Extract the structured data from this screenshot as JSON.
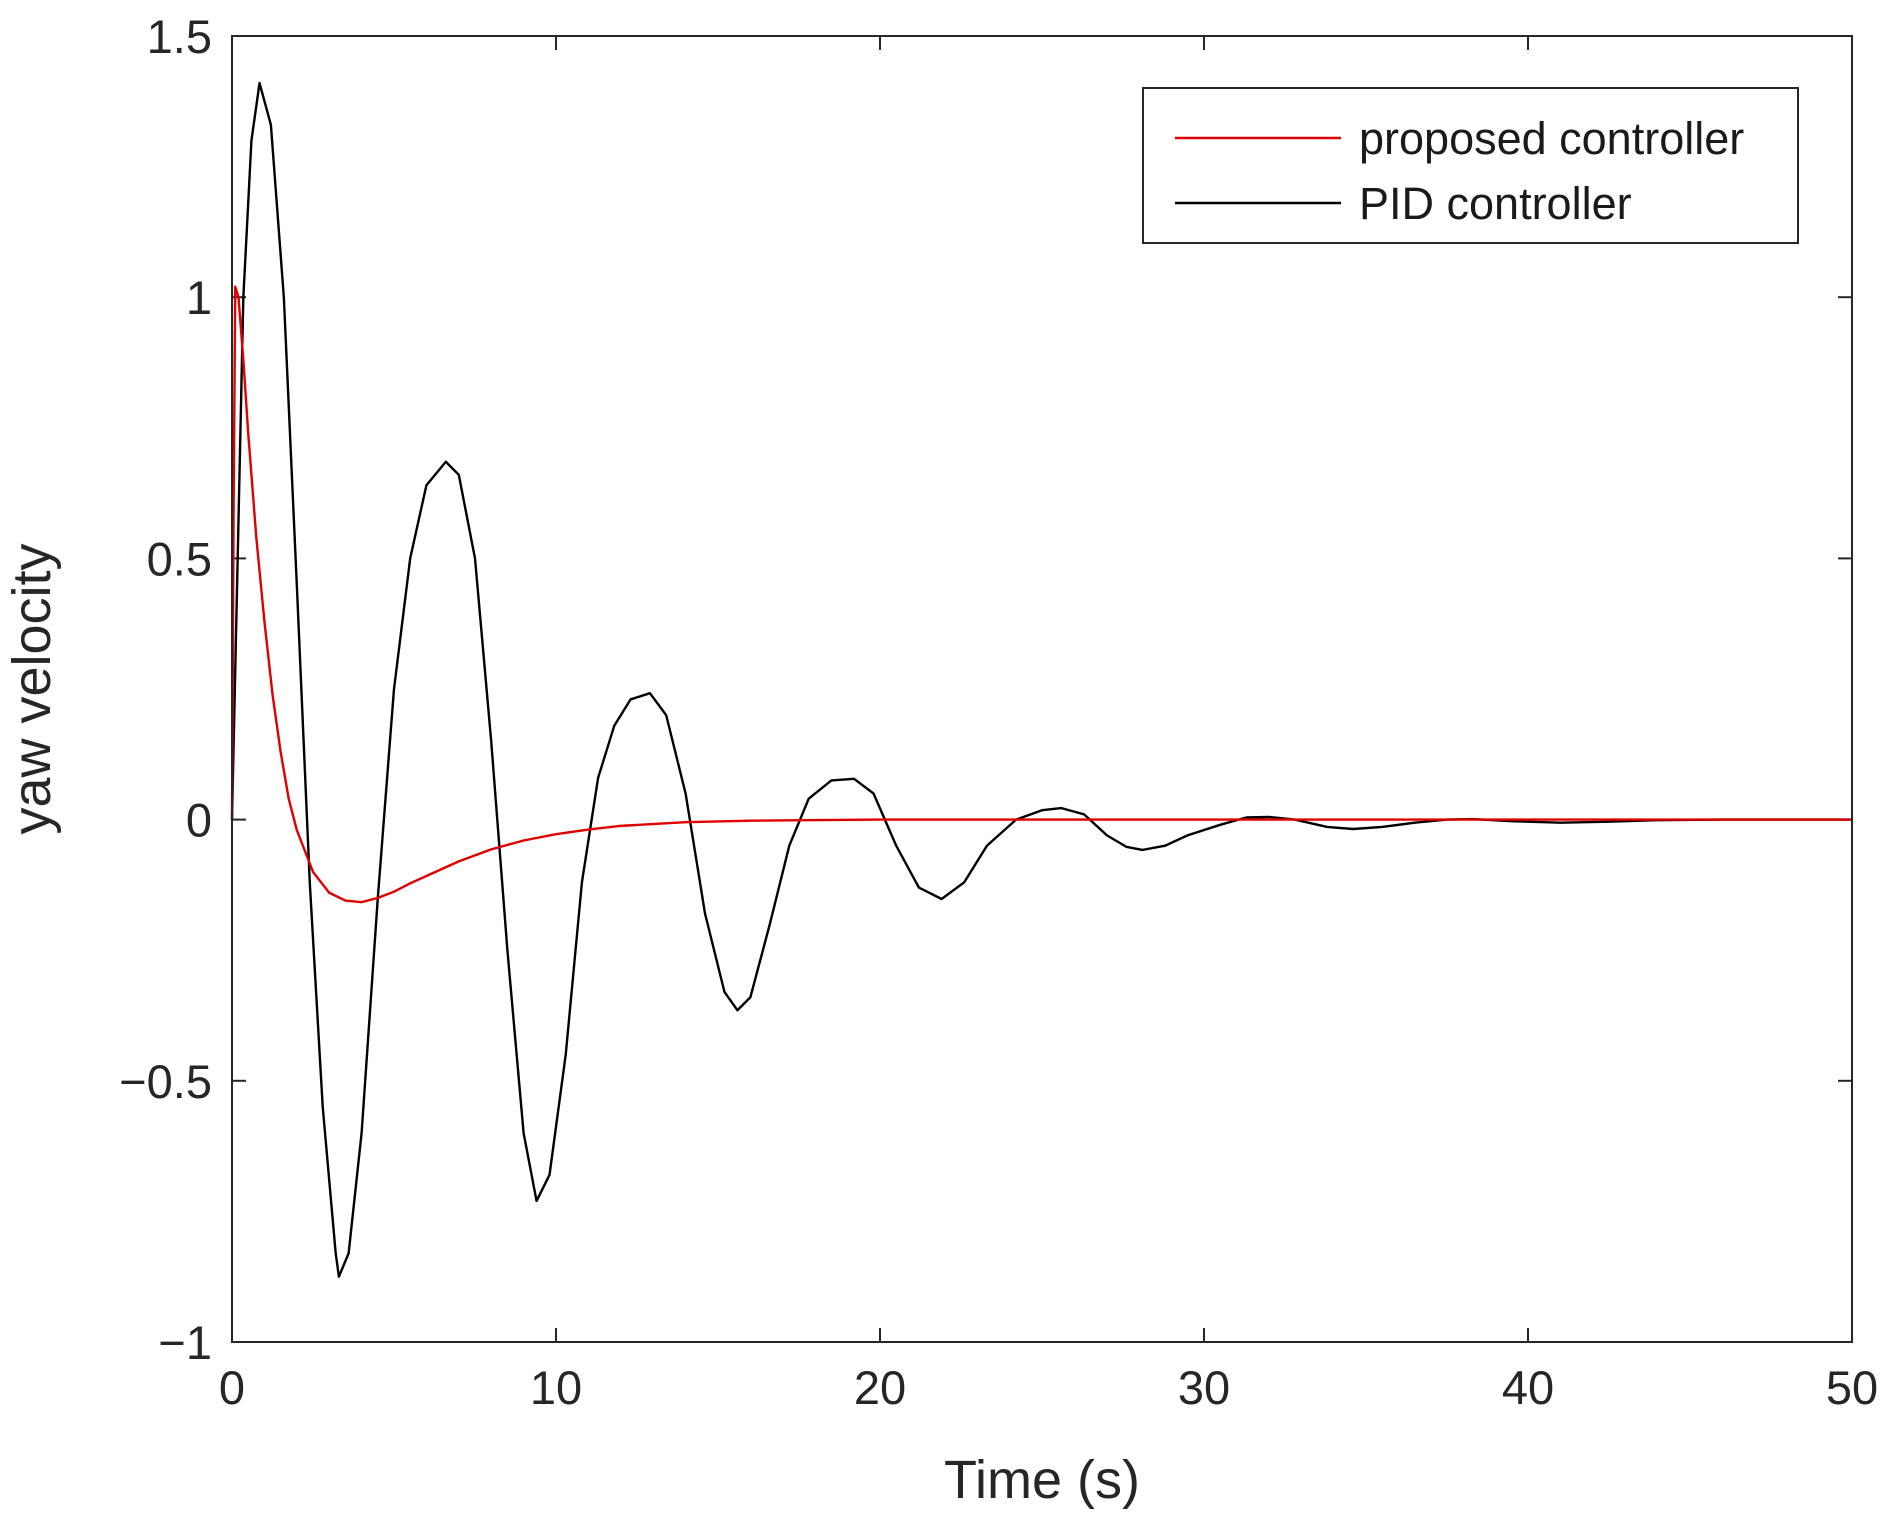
{
  "chart_data": {
    "type": "line",
    "title": "",
    "xlabel": "Time (s)",
    "ylabel": "yaw velocity",
    "xlim": [
      0,
      50
    ],
    "ylim": [
      -1,
      1.5
    ],
    "xticks": [
      0,
      10,
      20,
      30,
      40,
      50
    ],
    "xtick_labels": [
      "0",
      "10",
      "20",
      "30",
      "40",
      "50"
    ],
    "yticks": [
      -1,
      -0.5,
      0,
      0.5,
      1,
      1.5
    ],
    "ytick_labels": [
      "−1",
      "−0.5",
      "0",
      "0.5",
      "1",
      "1.5"
    ],
    "grid": false,
    "legend_position": "top-right",
    "series": [
      {
        "name": "proposed controller",
        "color": "#e00000",
        "points": [
          [
            0,
            0
          ],
          [
            0.05,
            0.6
          ],
          [
            0.1,
            1.02
          ],
          [
            0.2,
            1.0
          ],
          [
            0.35,
            0.88
          ],
          [
            0.5,
            0.74
          ],
          [
            0.75,
            0.54
          ],
          [
            1.0,
            0.38
          ],
          [
            1.25,
            0.24
          ],
          [
            1.5,
            0.13
          ],
          [
            1.75,
            0.04
          ],
          [
            2.0,
            -0.02
          ],
          [
            2.25,
            -0.06
          ],
          [
            2.5,
            -0.1
          ],
          [
            3.0,
            -0.14
          ],
          [
            3.5,
            -0.155
          ],
          [
            4.0,
            -0.158
          ],
          [
            4.5,
            -0.15
          ],
          [
            5.0,
            -0.138
          ],
          [
            5.5,
            -0.122
          ],
          [
            6.0,
            -0.108
          ],
          [
            7.0,
            -0.08
          ],
          [
            8.0,
            -0.057
          ],
          [
            9.0,
            -0.04
          ],
          [
            10.0,
            -0.028
          ],
          [
            11.0,
            -0.019
          ],
          [
            12.0,
            -0.012
          ],
          [
            14.0,
            -0.005
          ],
          [
            16.0,
            -0.002
          ],
          [
            20.0,
            0.0
          ],
          [
            30.0,
            0.0
          ],
          [
            40.0,
            0.0
          ],
          [
            50.0,
            0.0
          ]
        ]
      },
      {
        "name": "PID controller",
        "color": "#000000",
        "points": [
          [
            0,
            0
          ],
          [
            0.35,
            1.0
          ],
          [
            0.6,
            1.3
          ],
          [
            0.85,
            1.41
          ],
          [
            1.2,
            1.33
          ],
          [
            1.6,
            1.0
          ],
          [
            2.0,
            0.45
          ],
          [
            2.4,
            -0.12
          ],
          [
            2.8,
            -0.55
          ],
          [
            3.2,
            -0.83
          ],
          [
            3.3,
            -0.875
          ],
          [
            3.6,
            -0.83
          ],
          [
            4.0,
            -0.6
          ],
          [
            4.5,
            -0.15
          ],
          [
            5.0,
            0.25
          ],
          [
            5.5,
            0.5
          ],
          [
            6.0,
            0.64
          ],
          [
            6.6,
            0.685
          ],
          [
            7.0,
            0.66
          ],
          [
            7.5,
            0.5
          ],
          [
            8.0,
            0.15
          ],
          [
            8.5,
            -0.25
          ],
          [
            9.0,
            -0.6
          ],
          [
            9.4,
            -0.73
          ],
          [
            9.8,
            -0.68
          ],
          [
            10.3,
            -0.45
          ],
          [
            10.8,
            -0.12
          ],
          [
            11.3,
            0.08
          ],
          [
            11.8,
            0.18
          ],
          [
            12.3,
            0.23
          ],
          [
            12.9,
            0.242
          ],
          [
            13.4,
            0.2
          ],
          [
            14.0,
            0.05
          ],
          [
            14.6,
            -0.18
          ],
          [
            15.2,
            -0.33
          ],
          [
            15.6,
            -0.365
          ],
          [
            16.0,
            -0.34
          ],
          [
            16.6,
            -0.2
          ],
          [
            17.2,
            -0.05
          ],
          [
            17.8,
            0.04
          ],
          [
            18.5,
            0.075
          ],
          [
            19.2,
            0.078
          ],
          [
            19.8,
            0.05
          ],
          [
            20.5,
            -0.05
          ],
          [
            21.2,
            -0.13
          ],
          [
            21.9,
            -0.152
          ],
          [
            22.6,
            -0.12
          ],
          [
            23.3,
            -0.05
          ],
          [
            24.2,
            0.0
          ],
          [
            25.0,
            0.018
          ],
          [
            25.6,
            0.022
          ],
          [
            26.3,
            0.01
          ],
          [
            27.0,
            -0.03
          ],
          [
            27.6,
            -0.052
          ],
          [
            28.1,
            -0.058
          ],
          [
            28.8,
            -0.05
          ],
          [
            29.5,
            -0.03
          ],
          [
            30.5,
            -0.01
          ],
          [
            31.3,
            0.004
          ],
          [
            32.0,
            0.005
          ],
          [
            32.8,
            0.0
          ],
          [
            33.8,
            -0.014
          ],
          [
            34.6,
            -0.018
          ],
          [
            35.5,
            -0.014
          ],
          [
            36.5,
            -0.006
          ],
          [
            37.5,
            0.0
          ],
          [
            38.3,
            0.001
          ],
          [
            39.5,
            -0.003
          ],
          [
            41.0,
            -0.006
          ],
          [
            42.5,
            -0.004
          ],
          [
            44.0,
            -0.001
          ],
          [
            46.0,
            0.0
          ],
          [
            50.0,
            0.0
          ]
        ]
      }
    ]
  }
}
